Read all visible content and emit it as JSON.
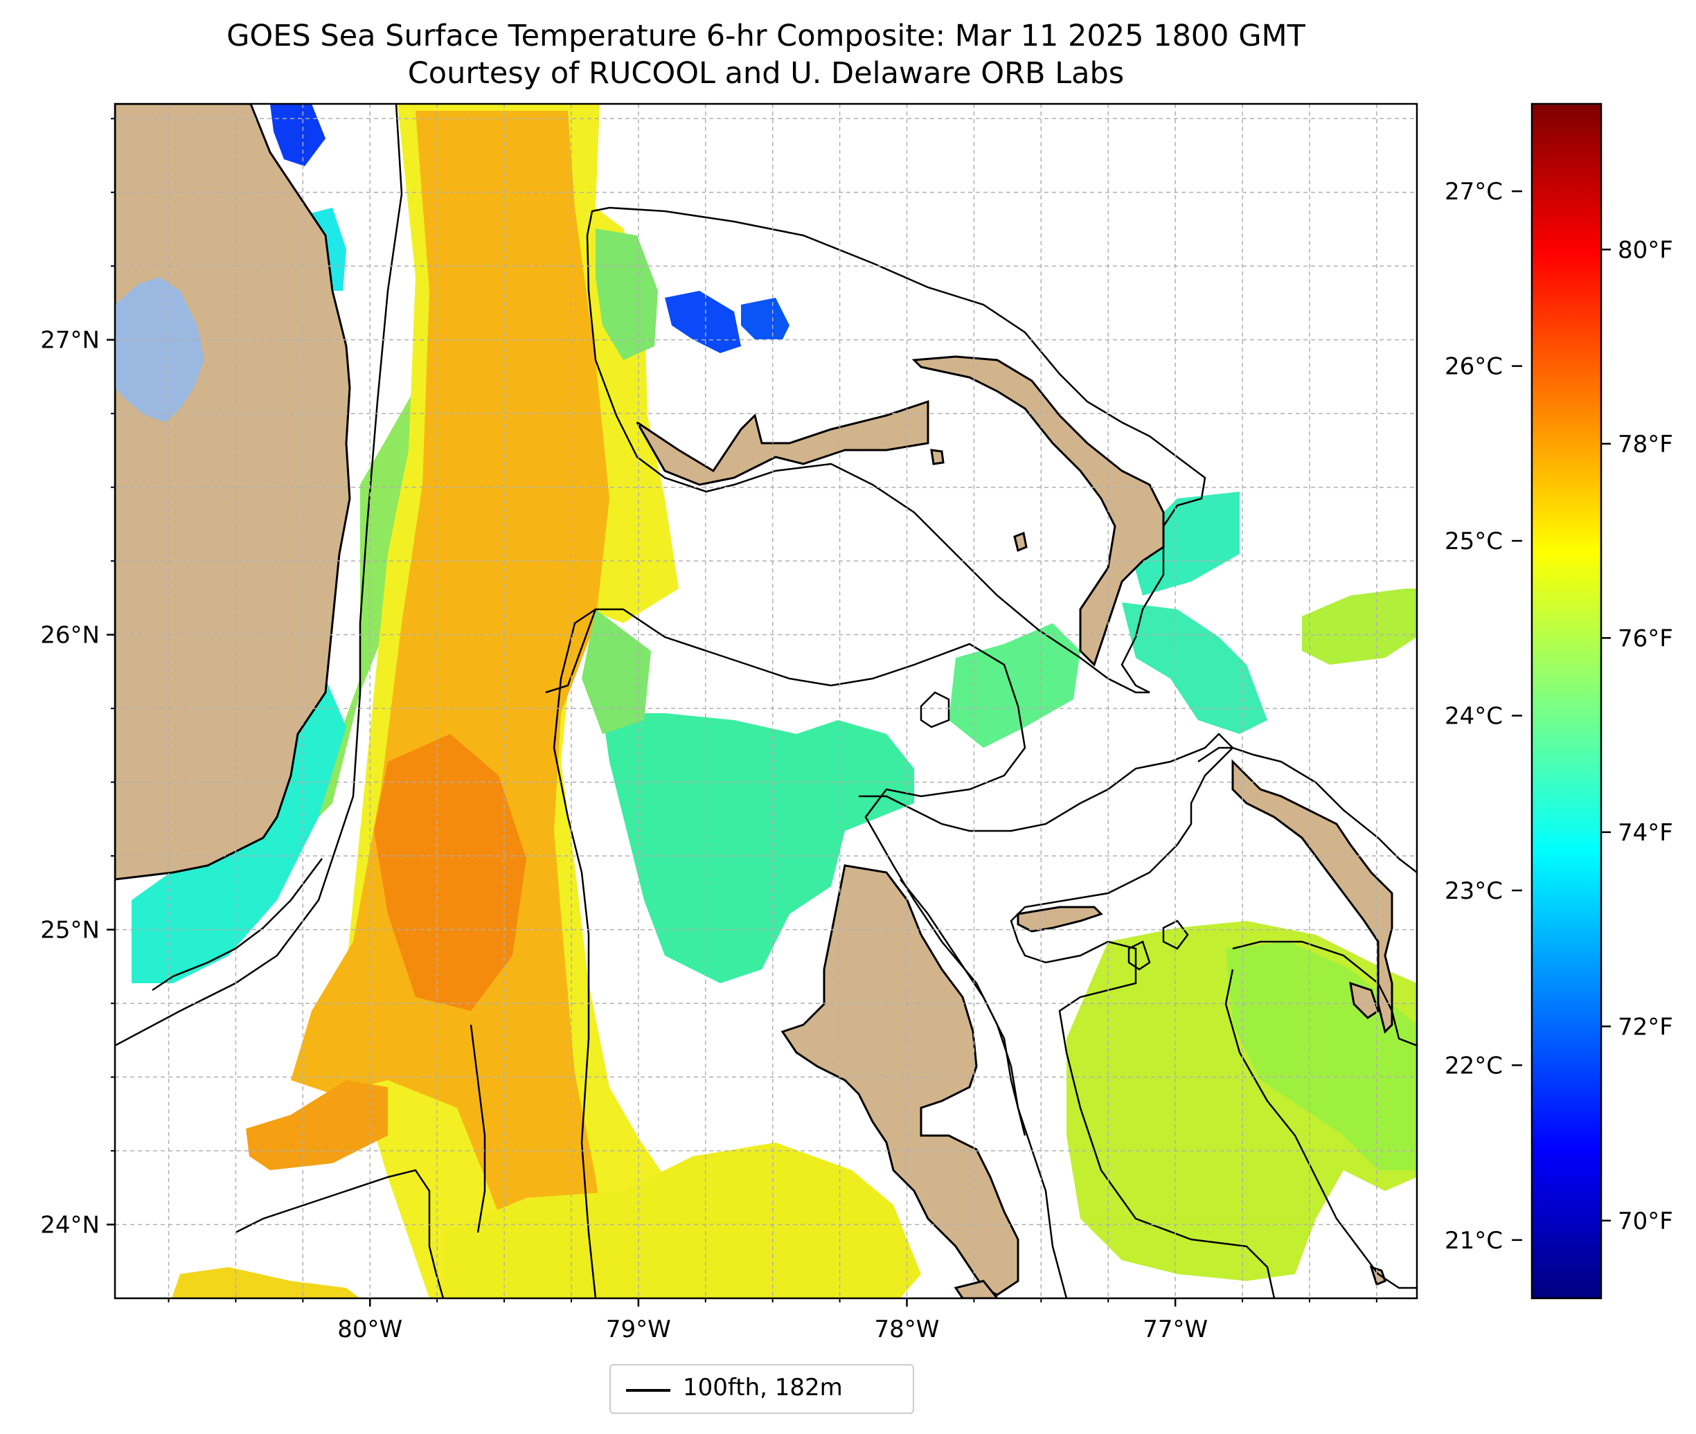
{
  "title": {
    "line1": "GOES Sea Surface Temperature 6-hr Composite: Mar 11 2025 1800 GMT",
    "line2": "Courtesy of RUCOOL and U. Delaware ORB Labs"
  },
  "map": {
    "lon_range": [
      -80.95,
      -76.1
    ],
    "lat_range": [
      23.75,
      27.8
    ],
    "x_ticks": [
      {
        "value": -80,
        "label": "80°W"
      },
      {
        "value": -79,
        "label": "79°W"
      },
      {
        "value": -78,
        "label": "78°W"
      },
      {
        "value": -77,
        "label": "77°W"
      }
    ],
    "y_ticks": [
      {
        "value": 24,
        "label": "24°N"
      },
      {
        "value": 25,
        "label": "25°N"
      },
      {
        "value": 26,
        "label": "26°N"
      },
      {
        "value": 27,
        "label": "27°N"
      }
    ],
    "grid": true,
    "colors": {
      "land": "#d2b48c",
      "lake": "#9ab8e0",
      "contour": "#000000"
    }
  },
  "colorbar": {
    "celsius_ticks": [
      {
        "value": 21,
        "label": "21°C"
      },
      {
        "value": 22,
        "label": "22°C"
      },
      {
        "value": 23,
        "label": "23°C"
      },
      {
        "value": 24,
        "label": "24°C"
      },
      {
        "value": 25,
        "label": "25°C"
      },
      {
        "value": 26,
        "label": "26°C"
      },
      {
        "value": 27,
        "label": "27°C"
      }
    ],
    "fahrenheit_ticks": [
      {
        "value": 70,
        "label": "70°F"
      },
      {
        "value": 72,
        "label": "72°F"
      },
      {
        "value": 74,
        "label": "74°F"
      },
      {
        "value": 76,
        "label": "76°F"
      },
      {
        "value": 78,
        "label": "78°F"
      },
      {
        "value": 80,
        "label": "80°F"
      }
    ],
    "range_f": [
      69.2,
      81.5
    ],
    "colormap": [
      "#00007f",
      "#0000ff",
      "#007fff",
      "#00ffff",
      "#7fff7f",
      "#ffff00",
      "#ff7f00",
      "#ff0000",
      "#7f0000"
    ]
  },
  "legend": {
    "label": "100fth, 182m"
  }
}
